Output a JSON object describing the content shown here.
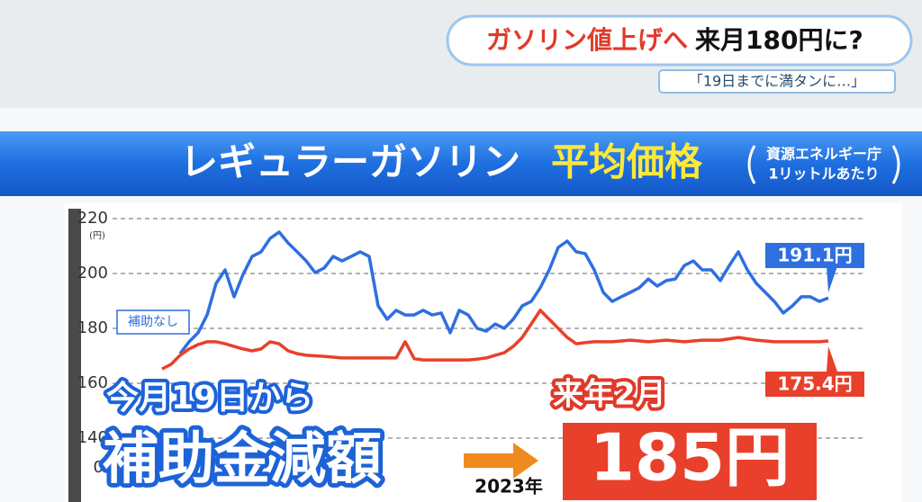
{
  "header": {
    "headline_red": "ガソリン値上げへ",
    "headline_black": "来月180円に?",
    "subline": "「19日までに満タンに…」"
  },
  "chart_data": {
    "type": "line",
    "title": "レギュラーガソリン",
    "title_highlight": "平均価格",
    "source_note": [
      "資源エネルギー庁",
      "1リットルあたり"
    ],
    "y_unit": "(円)",
    "ylim": [
      140,
      220
    ],
    "yticks": [
      140,
      160,
      180,
      200,
      220
    ],
    "y_break_tick": 0,
    "grid": true,
    "x_label": "2023年",
    "series": [
      {
        "name": "補助なし",
        "color": "#2f6fe0",
        "values": [
          null,
          null,
          170.8,
          175.1,
          178.4,
          184.9,
          196.4,
          201.3,
          191.5,
          199.7,
          206.2,
          207.9,
          212.8,
          215.1,
          211.1,
          207.9,
          204.6,
          200.3,
          202.0,
          206.2,
          204.6,
          206.2,
          207.9,
          206.2,
          188.2,
          183.3,
          186.6,
          184.9,
          184.9,
          186.6,
          184.9,
          185.6,
          178.4,
          186.6,
          184.9,
          180.0,
          179.0,
          181.6,
          180.0,
          183.3,
          188.2,
          189.8,
          194.8,
          201.3,
          209.5,
          211.8,
          207.9,
          207.2,
          201.3,
          193.1,
          189.8,
          191.5,
          193.1,
          194.8,
          198.0,
          195.4,
          197.4,
          198.0,
          202.9,
          204.6,
          201.3,
          201.3,
          197.4,
          202.9,
          207.9,
          201.3,
          196.4,
          193.1,
          189.8,
          185.6,
          188.2,
          191.5,
          191.5,
          189.8,
          191.1
        ],
        "end_label": {
          "value": 191.1,
          "label": "191.1円"
        }
      },
      {
        "color": "#e8402a",
        "values": [
          165.2,
          166.9,
          170.2,
          172.5,
          174.1,
          175.1,
          175.1,
          174.4,
          173.4,
          172.5,
          171.8,
          172.5,
          175.1,
          174.4,
          171.8,
          170.8,
          170.2,
          170.0,
          169.8,
          169.5,
          169.2,
          169.2,
          169.2,
          169.2,
          169.2,
          169.2,
          169.2,
          175.1,
          169.0,
          168.5,
          168.5,
          168.5,
          168.5,
          168.5,
          168.5,
          168.8,
          169.2,
          170.2,
          171.1,
          173.4,
          176.7,
          181.6,
          186.6,
          183.3,
          180.0,
          176.7,
          174.4,
          174.8,
          175.1,
          175.1,
          175.1,
          175.4,
          175.7,
          175.4,
          175.1,
          175.4,
          175.7,
          175.4,
          175.1,
          175.4,
          175.7,
          175.7,
          175.7,
          176.2,
          176.7,
          176.2,
          175.7,
          175.4,
          175.1,
          175.1,
          175.1,
          175.1,
          175.1,
          175.1,
          175.4
        ],
        "end_label": {
          "value": 175.4,
          "label": "175.4円"
        }
      }
    ]
  },
  "overlay": {
    "from_text": "今月19日から",
    "main_text": "補助金減額",
    "when_text": "来年2月",
    "price_text": "185円"
  }
}
